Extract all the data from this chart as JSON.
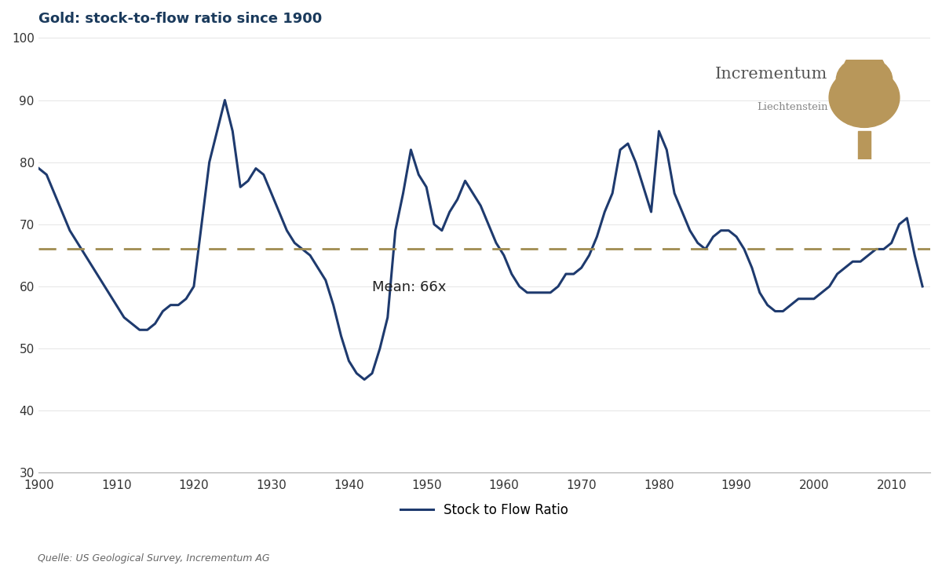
{
  "title": "Gold: stock-to-flow ratio since 1900",
  "title_color": "#1a3a5c",
  "source_text": "Quelle: US Geological Survey, Incrementum AG",
  "mean_value": 66,
  "mean_label": "Mean: 66x",
  "line_color": "#1e3a6e",
  "mean_line_color": "#a08c50",
  "line_width": 2.2,
  "ylim": [
    30,
    100
  ],
  "xlim": [
    1900,
    2015
  ],
  "yticks": [
    30,
    40,
    50,
    60,
    70,
    80,
    90,
    100
  ],
  "xticks": [
    1900,
    1910,
    1920,
    1930,
    1940,
    1950,
    1960,
    1970,
    1980,
    1990,
    2000,
    2010
  ],
  "legend_label": "Stock to Flow Ratio",
  "years": [
    1900,
    1901,
    1902,
    1903,
    1904,
    1905,
    1906,
    1907,
    1908,
    1909,
    1910,
    1911,
    1912,
    1913,
    1914,
    1915,
    1916,
    1917,
    1918,
    1919,
    1920,
    1921,
    1922,
    1923,
    1924,
    1925,
    1926,
    1927,
    1928,
    1929,
    1930,
    1931,
    1932,
    1933,
    1934,
    1935,
    1936,
    1937,
    1938,
    1939,
    1940,
    1941,
    1942,
    1943,
    1944,
    1945,
    1946,
    1947,
    1948,
    1949,
    1950,
    1951,
    1952,
    1953,
    1954,
    1955,
    1956,
    1957,
    1958,
    1959,
    1960,
    1961,
    1962,
    1963,
    1964,
    1965,
    1966,
    1967,
    1968,
    1969,
    1970,
    1971,
    1972,
    1973,
    1974,
    1975,
    1976,
    1977,
    1978,
    1979,
    1980,
    1981,
    1982,
    1983,
    1984,
    1985,
    1986,
    1987,
    1988,
    1989,
    1990,
    1991,
    1992,
    1993,
    1994,
    1995,
    1996,
    1997,
    1998,
    1999,
    2000,
    2001,
    2002,
    2003,
    2004,
    2005,
    2006,
    2007,
    2008,
    2009,
    2010,
    2011,
    2012,
    2013,
    2014
  ],
  "values": [
    79,
    78,
    75,
    72,
    69,
    67,
    65,
    63,
    61,
    59,
    57,
    55,
    54,
    53,
    53,
    54,
    56,
    57,
    57,
    58,
    60,
    70,
    80,
    85,
    90,
    85,
    76,
    77,
    79,
    78,
    75,
    72,
    69,
    67,
    66,
    65,
    63,
    61,
    57,
    52,
    48,
    46,
    45,
    46,
    50,
    55,
    69,
    75,
    82,
    78,
    76,
    70,
    69,
    72,
    74,
    77,
    75,
    73,
    70,
    67,
    65,
    62,
    60,
    59,
    59,
    59,
    59,
    60,
    62,
    62,
    63,
    65,
    68,
    72,
    75,
    82,
    83,
    80,
    76,
    72,
    85,
    82,
    75,
    72,
    69,
    67,
    66,
    68,
    69,
    69,
    68,
    66,
    63,
    59,
    57,
    56,
    56,
    57,
    58,
    58,
    58,
    59,
    60,
    62,
    63,
    64,
    64,
    65,
    66,
    66,
    67,
    70,
    71,
    65,
    60
  ]
}
